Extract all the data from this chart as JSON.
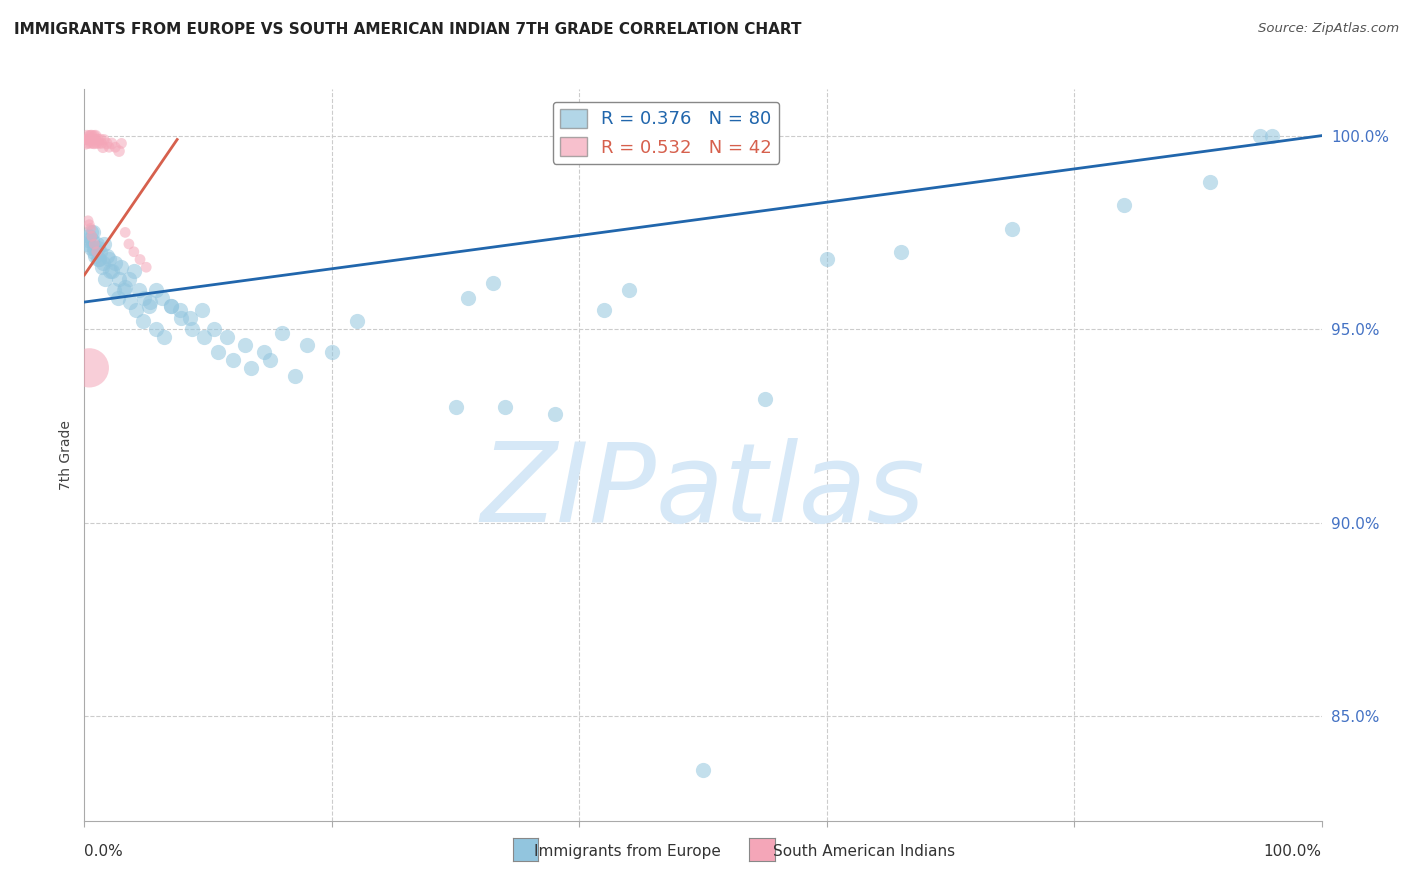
{
  "title": "IMMIGRANTS FROM EUROPE VS SOUTH AMERICAN INDIAN 7TH GRADE CORRELATION CHART",
  "source": "Source: ZipAtlas.com",
  "ylabel": "7th Grade",
  "ytick_labels": [
    "85.0%",
    "90.0%",
    "95.0%",
    "100.0%"
  ],
  "ytick_values": [
    0.85,
    0.9,
    0.95,
    1.0
  ],
  "xlim": [
    0.0,
    1.0
  ],
  "ylim": [
    0.823,
    1.012
  ],
  "blue_color": "#92c5de",
  "pink_color": "#f4a6b8",
  "blue_line_color": "#2166ac",
  "pink_line_color": "#d6604d",
  "ytick_color": "#4472C4",
  "watermark_color": "#d6e8f7",
  "grid_color": "#cccccc",
  "spine_color": "#aaaaaa",
  "title_color": "#222222",
  "source_color": "#555555",
  "legend_blue_text": "R = 0.376   N = 80",
  "legend_pink_text": "R = 0.532   N = 42",
  "bottom_label_blue": "Immigrants from Europe",
  "bottom_label_pink": "South American Indians",
  "watermark": "ZIPatlas",
  "blue_scatter": {
    "x": [
      0.002,
      0.003,
      0.004,
      0.005,
      0.006,
      0.007,
      0.008,
      0.009,
      0.01,
      0.011,
      0.012,
      0.013,
      0.015,
      0.016,
      0.018,
      0.02,
      0.022,
      0.025,
      0.028,
      0.03,
      0.033,
      0.036,
      0.04,
      0.044,
      0.048,
      0.053,
      0.058,
      0.063,
      0.07,
      0.077,
      0.085,
      0.095,
      0.105,
      0.115,
      0.13,
      0.145,
      0.16,
      0.18,
      0.2,
      0.22,
      0.005,
      0.008,
      0.011,
      0.014,
      0.017,
      0.021,
      0.024,
      0.027,
      0.032,
      0.037,
      0.042,
      0.047,
      0.052,
      0.058,
      0.064,
      0.07,
      0.078,
      0.087,
      0.097,
      0.108,
      0.12,
      0.135,
      0.15,
      0.17,
      0.31,
      0.33,
      0.42,
      0.44,
      0.6,
      0.66,
      0.75,
      0.84,
      0.91,
      0.96,
      0.3,
      0.34,
      0.38,
      0.5,
      0.55,
      0.95
    ],
    "y": [
      0.972,
      0.973,
      0.974,
      0.971,
      0.973,
      0.975,
      0.97,
      0.969,
      0.972,
      0.971,
      0.968,
      0.97,
      0.967,
      0.972,
      0.969,
      0.968,
      0.965,
      0.967,
      0.963,
      0.966,
      0.961,
      0.963,
      0.965,
      0.96,
      0.958,
      0.957,
      0.96,
      0.958,
      0.956,
      0.955,
      0.953,
      0.955,
      0.95,
      0.948,
      0.946,
      0.944,
      0.949,
      0.946,
      0.944,
      0.952,
      0.975,
      0.971,
      0.968,
      0.966,
      0.963,
      0.965,
      0.96,
      0.958,
      0.96,
      0.957,
      0.955,
      0.952,
      0.956,
      0.95,
      0.948,
      0.956,
      0.953,
      0.95,
      0.948,
      0.944,
      0.942,
      0.94,
      0.942,
      0.938,
      0.958,
      0.962,
      0.955,
      0.96,
      0.968,
      0.97,
      0.976,
      0.982,
      0.988,
      1.0,
      0.93,
      0.93,
      0.928,
      0.836,
      0.932,
      1.0
    ]
  },
  "pink_scatter": {
    "x": [
      0.001,
      0.002,
      0.002,
      0.003,
      0.003,
      0.004,
      0.004,
      0.005,
      0.005,
      0.006,
      0.006,
      0.007,
      0.007,
      0.008,
      0.008,
      0.009,
      0.009,
      0.01,
      0.011,
      0.012,
      0.013,
      0.014,
      0.015,
      0.016,
      0.018,
      0.02,
      0.022,
      0.025,
      0.028,
      0.03,
      0.033,
      0.036,
      0.04,
      0.045,
      0.05,
      0.003,
      0.004,
      0.005,
      0.006,
      0.008,
      0.01,
      0.004
    ],
    "y": [
      0.998,
      0.999,
      1.0,
      0.998,
      0.999,
      1.0,
      0.999,
      0.998,
      1.0,
      0.999,
      1.0,
      0.998,
      0.999,
      1.0,
      0.998,
      0.999,
      1.0,
      0.998,
      0.999,
      0.998,
      0.999,
      0.998,
      0.997,
      0.999,
      0.998,
      0.997,
      0.998,
      0.997,
      0.996,
      0.998,
      0.975,
      0.972,
      0.97,
      0.968,
      0.966,
      0.978,
      0.977,
      0.976,
      0.974,
      0.972,
      0.97,
      0.94
    ],
    "sizes": [
      80,
      60,
      70,
      60,
      70,
      60,
      70,
      60,
      70,
      60,
      70,
      60,
      70,
      60,
      70,
      60,
      70,
      60,
      70,
      60,
      70,
      60,
      70,
      60,
      70,
      60,
      70,
      60,
      70,
      60,
      60,
      60,
      60,
      60,
      60,
      60,
      60,
      60,
      60,
      60,
      60,
      800
    ]
  }
}
